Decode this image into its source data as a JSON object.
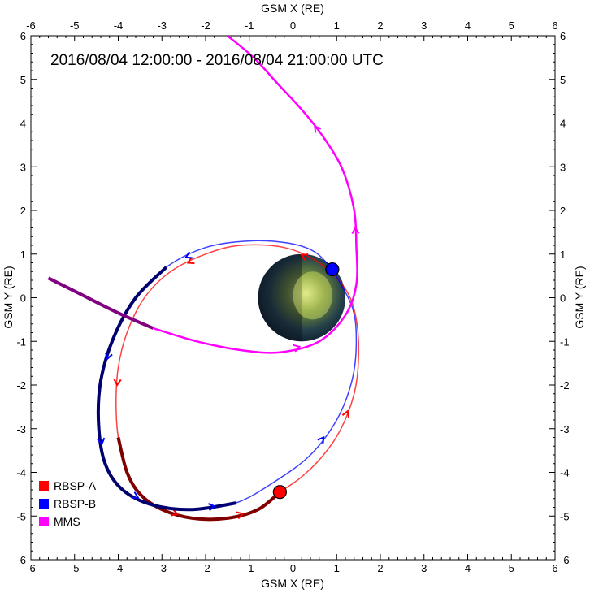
{
  "chart_data": {
    "type": "line",
    "title": "2016/08/04 12:00:00 - 2016/08/04 21:00:00 UTC",
    "xlabel": "GSM X (RE)",
    "ylabel": "GSM Y (RE)",
    "xlim": [
      -6,
      6
    ],
    "ylim": [
      -6,
      6
    ],
    "xticks": [
      -6,
      -5,
      -4,
      -3,
      -2,
      -1,
      0,
      1,
      2,
      3,
      4,
      5,
      6
    ],
    "yticks": [
      -6,
      -5,
      -4,
      -3,
      -2,
      -1,
      0,
      1,
      2,
      3,
      4,
      5,
      6
    ],
    "grid": false,
    "legend_position": "bottom-left",
    "earth_center": [
      0.2,
      0
    ],
    "earth_radius_re": 1,
    "series": [
      {
        "name": "RBSP-A",
        "color": "#ff0000",
        "highlight_color": "#800000",
        "end_marker_color": "#ff0000",
        "points": [
          [
            -0.3,
            -4.45
          ],
          [
            0.2,
            -4.1
          ],
          [
            0.7,
            -3.6
          ],
          [
            1.1,
            -3.0
          ],
          [
            1.4,
            -2.2
          ],
          [
            1.5,
            -1.4
          ],
          [
            1.45,
            -0.5
          ],
          [
            1.2,
            0.2
          ],
          [
            0.6,
            0.8
          ],
          [
            -0.2,
            1.15
          ],
          [
            -1.2,
            1.2
          ],
          [
            -2.0,
            1.0
          ],
          [
            -2.8,
            0.6
          ],
          [
            -3.4,
            0.0
          ],
          [
            -3.8,
            -0.8
          ],
          [
            -4.0,
            -1.6
          ],
          [
            -4.05,
            -2.4
          ],
          [
            -4.0,
            -3.2
          ],
          [
            -3.8,
            -4.0
          ],
          [
            -3.5,
            -4.5
          ],
          [
            -3.0,
            -4.85
          ],
          [
            -2.3,
            -5.05
          ],
          [
            -1.5,
            -5.05
          ],
          [
            -0.8,
            -4.85
          ],
          [
            -0.3,
            -4.45
          ]
        ],
        "highlight_range": [
          17,
          25
        ],
        "arrows_at": [
          3,
          8,
          11,
          15,
          20,
          22
        ]
      },
      {
        "name": "RBSP-B",
        "color": "#0000ff",
        "highlight_color": "#000070",
        "end_marker_color": "#0000ff",
        "points": [
          [
            0.9,
            0.65
          ],
          [
            0.5,
            1.05
          ],
          [
            -0.1,
            1.25
          ],
          [
            -1.0,
            1.3
          ],
          [
            -2.0,
            1.15
          ],
          [
            -2.9,
            0.7
          ],
          [
            -3.6,
            0.0
          ],
          [
            -4.1,
            -0.9
          ],
          [
            -4.4,
            -1.9
          ],
          [
            -4.45,
            -2.9
          ],
          [
            -4.3,
            -3.8
          ],
          [
            -3.9,
            -4.4
          ],
          [
            -3.2,
            -4.75
          ],
          [
            -2.3,
            -4.85
          ],
          [
            -1.3,
            -4.7
          ],
          [
            -0.4,
            -4.2
          ],
          [
            0.4,
            -3.6
          ],
          [
            1.0,
            -2.8
          ],
          [
            1.35,
            -1.9
          ],
          [
            1.45,
            -1.0
          ],
          [
            1.35,
            -0.2
          ],
          [
            0.9,
            0.65
          ]
        ],
        "highlight_range": [
          5,
          15
        ],
        "arrows_at": [
          4,
          7,
          9,
          11,
          13,
          16
        ]
      },
      {
        "name": "MMS",
        "color": "#ff00ff",
        "pre_color": "#800080",
        "points": [
          [
            -5.6,
            0.45
          ],
          [
            -4.8,
            0.05
          ],
          [
            -4.0,
            -0.35
          ],
          [
            -3.2,
            -0.7
          ],
          [
            -2.2,
            -1.0
          ],
          [
            -1.2,
            -1.2
          ],
          [
            -0.3,
            -1.25
          ],
          [
            0.6,
            -1.0
          ],
          [
            1.2,
            -0.4
          ],
          [
            1.45,
            0.3
          ],
          [
            1.45,
            1.2
          ],
          [
            1.4,
            2.0
          ],
          [
            1.15,
            2.9
          ],
          [
            0.75,
            3.6
          ],
          [
            0.25,
            4.25
          ],
          [
            -0.35,
            4.9
          ],
          [
            -0.9,
            5.5
          ],
          [
            -1.5,
            6.0
          ]
        ],
        "pre_range": [
          0,
          3
        ],
        "arrows_at": [
          6,
          10,
          13
        ]
      }
    ]
  }
}
